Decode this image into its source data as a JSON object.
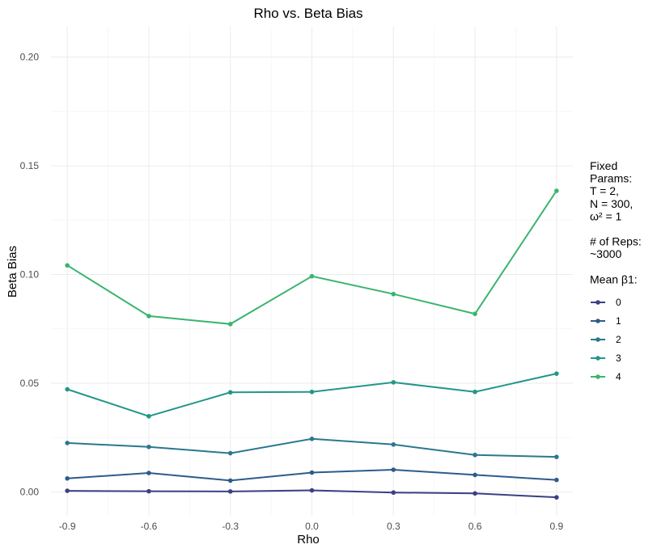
{
  "chart_data": {
    "type": "line",
    "title": "Rho vs. Beta Bias",
    "xlabel": "Rho",
    "ylabel": "Beta Bias",
    "x": [
      -0.9,
      -0.6,
      -0.3,
      0.0,
      0.3,
      0.6,
      0.9
    ],
    "x_tick_labels": [
      "-0.9",
      "-0.6",
      "-0.3",
      "0.0",
      "0.3",
      "0.6",
      "0.9"
    ],
    "y_ticks": [
      0.0,
      0.05,
      0.1,
      0.15,
      0.2
    ],
    "y_tick_labels": [
      "0.00",
      "0.05",
      "0.10",
      "0.15",
      "0.20"
    ],
    "xlim": [
      -0.96,
      0.96
    ],
    "ylim": [
      -0.011,
      0.214
    ],
    "grid": true,
    "legend_position": "right",
    "legend_notes": [
      "Fixed",
      "Params:",
      "T = 2,",
      "N = 300,",
      "ω² = 1",
      "",
      "# of Reps:",
      "~3000",
      "",
      "Mean β1:"
    ],
    "series": [
      {
        "name": "0",
        "color": "#3b3f85",
        "values": [
          0.0005,
          0.0003,
          0.0002,
          0.0007,
          -0.0003,
          -0.0007,
          -0.0025
        ]
      },
      {
        "name": "1",
        "color": "#2c5c8a",
        "values": [
          0.0062,
          0.0087,
          0.0052,
          0.0089,
          0.0102,
          0.0078,
          0.0055
        ]
      },
      {
        "name": "2",
        "color": "#2a788e",
        "values": [
          0.0225,
          0.0207,
          0.0178,
          0.0244,
          0.0218,
          0.017,
          0.0161
        ]
      },
      {
        "name": "3",
        "color": "#24968a",
        "values": [
          0.0472,
          0.0348,
          0.0458,
          0.046,
          0.0504,
          0.046,
          0.0544
        ]
      },
      {
        "name": "4",
        "color": "#3ab46e",
        "values": [
          0.1042,
          0.0809,
          0.0772,
          0.0992,
          0.091,
          0.0819,
          0.1385
        ]
      }
    ]
  }
}
